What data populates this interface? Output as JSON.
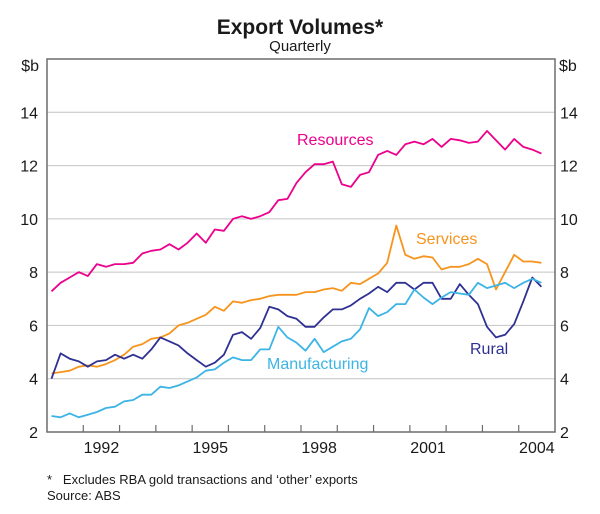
{
  "chart_data": {
    "type": "line",
    "title": "Export Volumes*",
    "subtitle": "Quarterly",
    "ylabel_left": "$b",
    "ylabel_right": "$b",
    "xlabel": "",
    "frequency": "quarterly",
    "x_start": "1991 Q1",
    "x_end": "2004 Q3",
    "xlim": [
      1991,
      2005
    ],
    "ylim": [
      2,
      16
    ],
    "grid": true,
    "y_ticks": [
      2,
      4,
      6,
      8,
      10,
      12,
      14
    ],
    "x_tick_labels": [
      "1992",
      "1995",
      "1998",
      "2001",
      "2004"
    ],
    "x_tick_label_years": [
      1992,
      1995,
      1998,
      2001,
      2004
    ],
    "legend": "inline-labels",
    "series": [
      {
        "name": "Resources",
        "color": "#EC008C",
        "values": [
          7.28,
          7.6,
          7.8,
          8.0,
          7.85,
          8.3,
          8.2,
          8.3,
          8.3,
          8.35,
          8.7,
          8.8,
          8.85,
          9.05,
          8.85,
          9.1,
          9.45,
          9.1,
          9.6,
          9.55,
          10.0,
          10.1,
          10.0,
          10.1,
          10.25,
          10.7,
          10.75,
          11.35,
          11.75,
          12.05,
          12.05,
          12.15,
          11.3,
          11.2,
          11.65,
          11.75,
          12.4,
          12.55,
          12.4,
          12.8,
          12.9,
          12.8,
          13.0,
          12.7,
          13.0,
          12.95,
          12.85,
          12.9,
          13.3,
          12.95,
          12.6,
          13.0,
          12.7,
          12.6,
          12.45
        ]
      },
      {
        "name": "Services",
        "color": "#F7941D",
        "values": [
          4.2,
          4.25,
          4.3,
          4.45,
          4.5,
          4.45,
          4.55,
          4.7,
          4.9,
          5.2,
          5.3,
          5.5,
          5.55,
          5.7,
          6.0,
          6.1,
          6.25,
          6.4,
          6.7,
          6.55,
          6.9,
          6.85,
          6.95,
          7.0,
          7.1,
          7.15,
          7.15,
          7.15,
          7.25,
          7.25,
          7.35,
          7.4,
          7.3,
          7.6,
          7.55,
          7.75,
          7.95,
          8.35,
          9.75,
          8.65,
          8.5,
          8.6,
          8.55,
          8.1,
          8.2,
          8.2,
          8.3,
          8.5,
          8.3,
          7.35,
          8.0,
          8.65,
          8.4,
          8.4,
          8.35
        ]
      },
      {
        "name": "Rural",
        "color": "#2E3192",
        "values": [
          4.0,
          4.95,
          4.75,
          4.65,
          4.45,
          4.65,
          4.7,
          4.9,
          4.75,
          4.9,
          4.75,
          5.1,
          5.55,
          5.4,
          5.25,
          4.95,
          4.7,
          4.45,
          4.6,
          4.9,
          5.65,
          5.75,
          5.5,
          5.9,
          6.7,
          6.6,
          6.35,
          6.25,
          5.95,
          5.95,
          6.3,
          6.6,
          6.6,
          6.75,
          7.0,
          7.2,
          7.45,
          7.25,
          7.6,
          7.6,
          7.35,
          7.6,
          7.6,
          7.0,
          7.0,
          7.55,
          7.15,
          6.8,
          5.95,
          5.55,
          5.65,
          6.05,
          6.9,
          7.8,
          7.45
        ]
      },
      {
        "name": "Manufacturing",
        "color": "#3CB4E5",
        "values": [
          2.6,
          2.55,
          2.7,
          2.55,
          2.65,
          2.75,
          2.9,
          2.95,
          3.15,
          3.2,
          3.4,
          3.4,
          3.7,
          3.65,
          3.75,
          3.9,
          4.05,
          4.3,
          4.35,
          4.6,
          4.8,
          4.7,
          4.7,
          5.1,
          5.1,
          5.95,
          5.55,
          5.35,
          5.05,
          5.5,
          5.0,
          5.2,
          5.4,
          5.5,
          5.85,
          6.65,
          6.35,
          6.5,
          6.8,
          6.8,
          7.35,
          7.05,
          6.8,
          7.05,
          7.25,
          7.2,
          7.15,
          7.6,
          7.4,
          7.5,
          7.6,
          7.4,
          7.6,
          7.75,
          7.6
        ]
      }
    ],
    "footnote": "*   Excludes RBA gold transactions and ‘other’ exports",
    "source": "Source: ABS"
  },
  "style": {
    "axis_color": "#6d6d6d",
    "grid_color": "#c4c4c4",
    "text_color": "#1a1a1a"
  }
}
